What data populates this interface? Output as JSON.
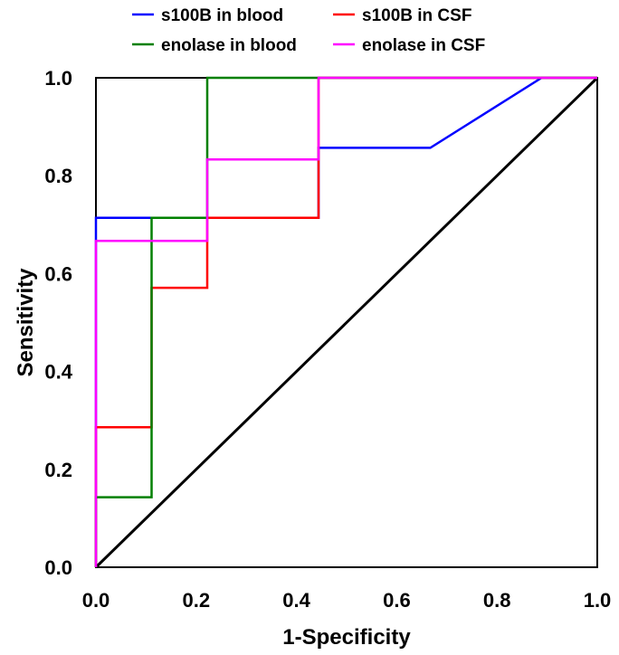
{
  "chart_data": {
    "type": "line",
    "xlabel": "1-Specificity",
    "ylabel": "Sensitivity",
    "xlim": [
      0.0,
      1.0
    ],
    "ylim": [
      0.0,
      1.0
    ],
    "xticks": [
      "0.0",
      "0.2",
      "0.4",
      "0.6",
      "0.8",
      "1.0"
    ],
    "yticks": [
      "0.0",
      "0.2",
      "0.4",
      "0.6",
      "0.8",
      "1.0"
    ],
    "legend_position": "top",
    "series": [
      {
        "name": "s100B in blood",
        "color": "#0000ff",
        "x": [
          0.0,
          0.0,
          0.111,
          0.111,
          0.222,
          0.222,
          0.444,
          0.444,
          0.667,
          0.889,
          1.0
        ],
        "y": [
          0.0,
          0.714,
          0.714,
          0.714,
          0.714,
          0.714,
          0.714,
          0.857,
          0.857,
          1.0,
          1.0
        ]
      },
      {
        "name": "s100B in CSF",
        "color": "#ff0000",
        "x": [
          0.0,
          0.0,
          0.111,
          0.111,
          0.222,
          0.222,
          0.444,
          0.444,
          1.0
        ],
        "y": [
          0.0,
          0.286,
          0.286,
          0.571,
          0.571,
          0.714,
          0.714,
          1.0,
          1.0
        ]
      },
      {
        "name": "enolase in blood",
        "color": "#008000",
        "x": [
          0.0,
          0.0,
          0.111,
          0.111,
          0.222,
          0.222,
          1.0
        ],
        "y": [
          0.0,
          0.143,
          0.143,
          0.714,
          0.714,
          1.0,
          1.0
        ]
      },
      {
        "name": "enolase in CSF",
        "color": "#ff00ff",
        "x": [
          0.0,
          0.0,
          0.222,
          0.222,
          0.444,
          0.444,
          1.0
        ],
        "y": [
          0.0,
          0.667,
          0.667,
          0.833,
          0.833,
          1.0,
          1.0
        ]
      },
      {
        "name": "",
        "color": "#000000",
        "x": [
          0.0,
          1.0
        ],
        "y": [
          0.0,
          1.0
        ]
      }
    ]
  }
}
